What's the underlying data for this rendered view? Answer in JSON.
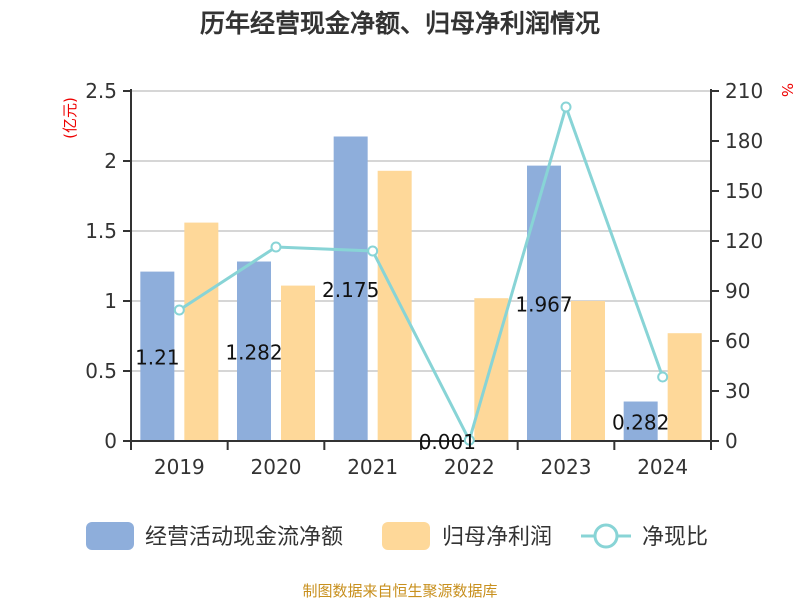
{
  "chart_data": {
    "type": "bar",
    "title": "历年经营现金净额、归母净利润情况",
    "categories": [
      "2019",
      "2020",
      "2021",
      "2022",
      "2023",
      "2024"
    ],
    "left_axis": {
      "unit": "(亿元)",
      "ylim": [
        0,
        2.5
      ],
      "ticks": [
        "0",
        "0.5",
        "1",
        "1.5",
        "2",
        "2.5"
      ]
    },
    "right_axis": {
      "unit": "%",
      "ylim": [
        0,
        210
      ],
      "ticks": [
        "0",
        "30",
        "60",
        "90",
        "120",
        "150",
        "180",
        "210"
      ]
    },
    "series": [
      {
        "name": "经营活动现金流净额",
        "type": "bar",
        "axis": "left",
        "color": "#8eaedb",
        "values": [
          1.21,
          1.282,
          2.175,
          0.001,
          1.967,
          0.282
        ],
        "labels": [
          "1.21",
          "1.282",
          "2.175",
          "0.001",
          "1.967",
          "0.282"
        ]
      },
      {
        "name": "归母净利润",
        "type": "bar",
        "axis": "left",
        "color": "#fed899",
        "values": [
          1.56,
          1.11,
          1.93,
          1.02,
          1.0,
          0.77
        ]
      },
      {
        "name": "净现比",
        "type": "line",
        "axis": "right",
        "color": "#88d4d6",
        "values": [
          78.6,
          116.4,
          114.0,
          0.5,
          200.4,
          38.4
        ]
      }
    ],
    "grid": true,
    "legend": "bottom",
    "source": "制图数据来自恒生聚源数据库"
  }
}
